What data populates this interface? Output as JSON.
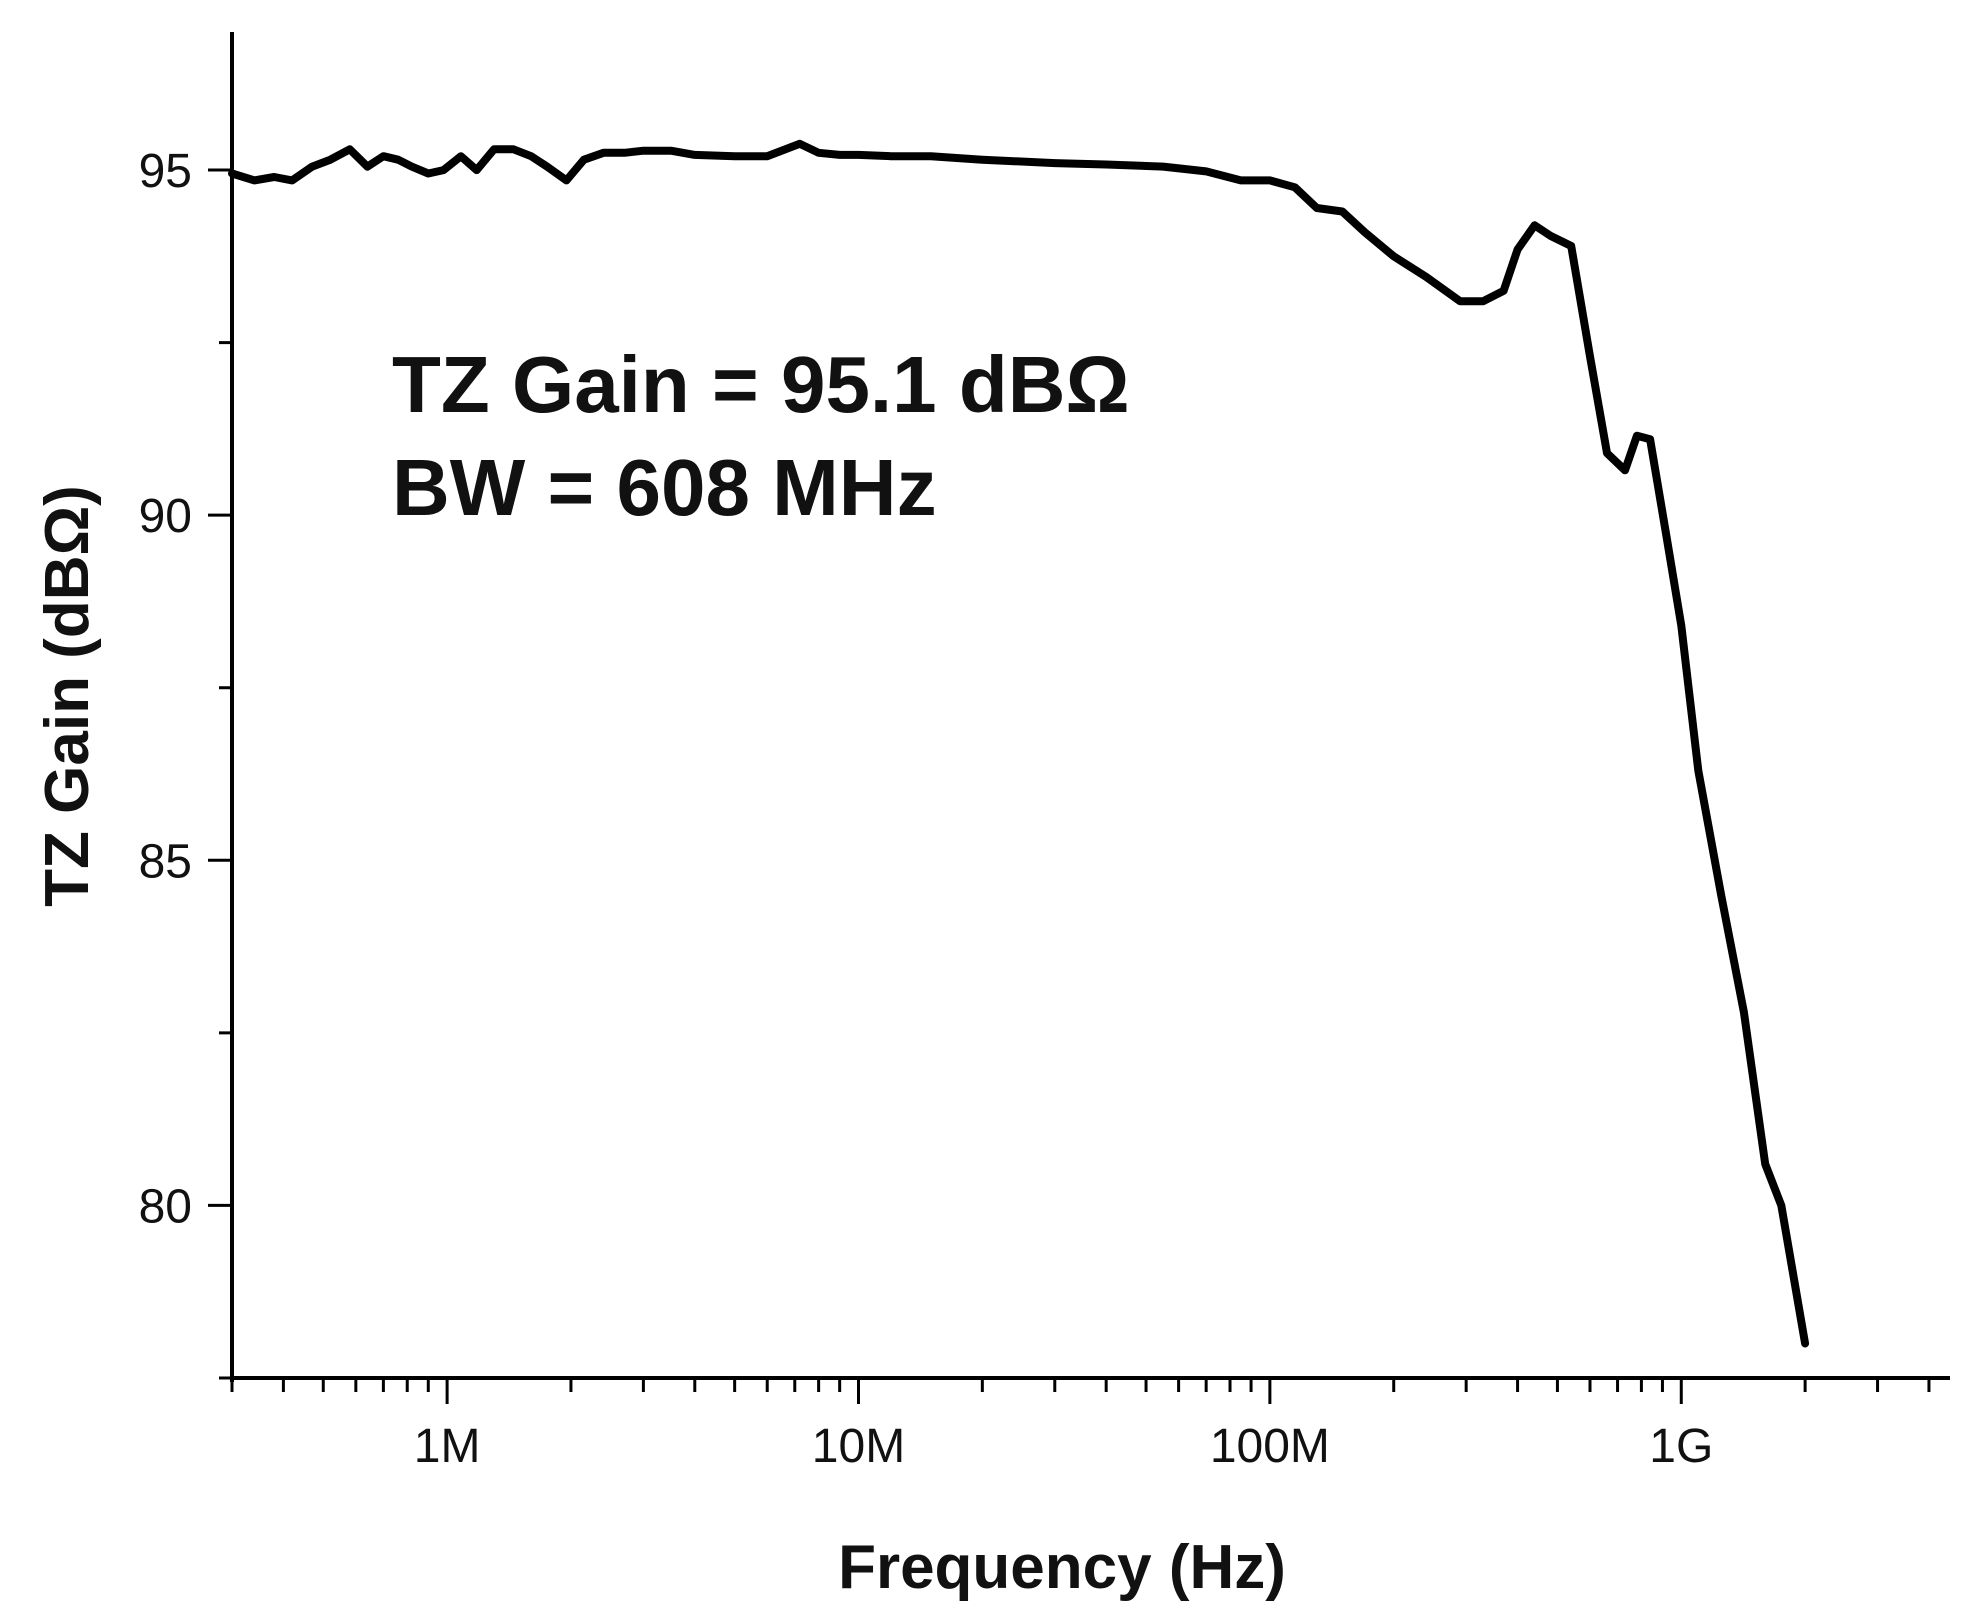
{
  "chart_data": {
    "type": "line",
    "title": "",
    "xlabel": "Frequency (Hz)",
    "ylabel": "TZ Gain (dBΩ)",
    "xscale": "log",
    "xlim": [
      300000,
      4500000000
    ],
    "ylim": [
      77.5,
      97
    ],
    "grid": false,
    "x_ticks": [
      {
        "value": 1000000,
        "label": "1M"
      },
      {
        "value": 10000000,
        "label": "10M"
      },
      {
        "value": 100000000,
        "label": "100M"
      },
      {
        "value": 1000000000,
        "label": "1G"
      }
    ],
    "y_ticks": [
      {
        "value": 80,
        "label": "80"
      },
      {
        "value": 85,
        "label": "85"
      },
      {
        "value": 90,
        "label": "90"
      },
      {
        "value": 95,
        "label": "95"
      }
    ],
    "y_minor_ticks": [
      77.5,
      82.5,
      87.5,
      92.5
    ],
    "annotations": [
      "TZ Gain =  95.1 dBΩ",
      "BW = 608 MHz"
    ],
    "series": [
      {
        "name": "",
        "color": "#000000",
        "x": [
          300000,
          340000,
          380000,
          420000,
          470000,
          520000,
          580000,
          640000,
          700000,
          760000,
          820000,
          900000,
          980000,
          1080000,
          1180000,
          1300000,
          1450000,
          1600000,
          1750000,
          1950000,
          2150000,
          2400000,
          2700000,
          3000000,
          3500000,
          4000000,
          5000000,
          6000000,
          7200000,
          8000000,
          9000000,
          10000000,
          12000000,
          15000000,
          20000000,
          30000000,
          40000000,
          55000000,
          70000000,
          85000000,
          100000000,
          115000000,
          130000000,
          150000000,
          170000000,
          200000000,
          240000000,
          290000000,
          330000000,
          370000000,
          400000000,
          440000000,
          480000000,
          540000000,
          600000000,
          660000000,
          730000000,
          780000000,
          840000000,
          920000000,
          1000000000,
          1100000000,
          1250000000,
          1420000000,
          1600000000,
          1750000000,
          2000000000
        ],
        "values": [
          94.95,
          94.85,
          94.9,
          94.85,
          95.05,
          95.15,
          95.3,
          95.05,
          95.2,
          95.15,
          95.05,
          94.95,
          95.0,
          95.2,
          95.0,
          95.3,
          95.3,
          95.2,
          95.05,
          94.85,
          95.15,
          95.25,
          95.25,
          95.28,
          95.28,
          95.22,
          95.2,
          95.2,
          95.38,
          95.25,
          95.22,
          95.22,
          95.2,
          95.2,
          95.15,
          95.1,
          95.08,
          95.05,
          94.98,
          94.85,
          94.85,
          94.75,
          94.45,
          94.4,
          94.1,
          93.75,
          93.45,
          93.1,
          93.1,
          93.25,
          93.85,
          94.2,
          94.05,
          93.9,
          92.3,
          90.9,
          90.65,
          91.15,
          91.1,
          89.7,
          88.4,
          86.3,
          84.5,
          82.8,
          80.6,
          80.0,
          78.0
        ]
      }
    ]
  }
}
